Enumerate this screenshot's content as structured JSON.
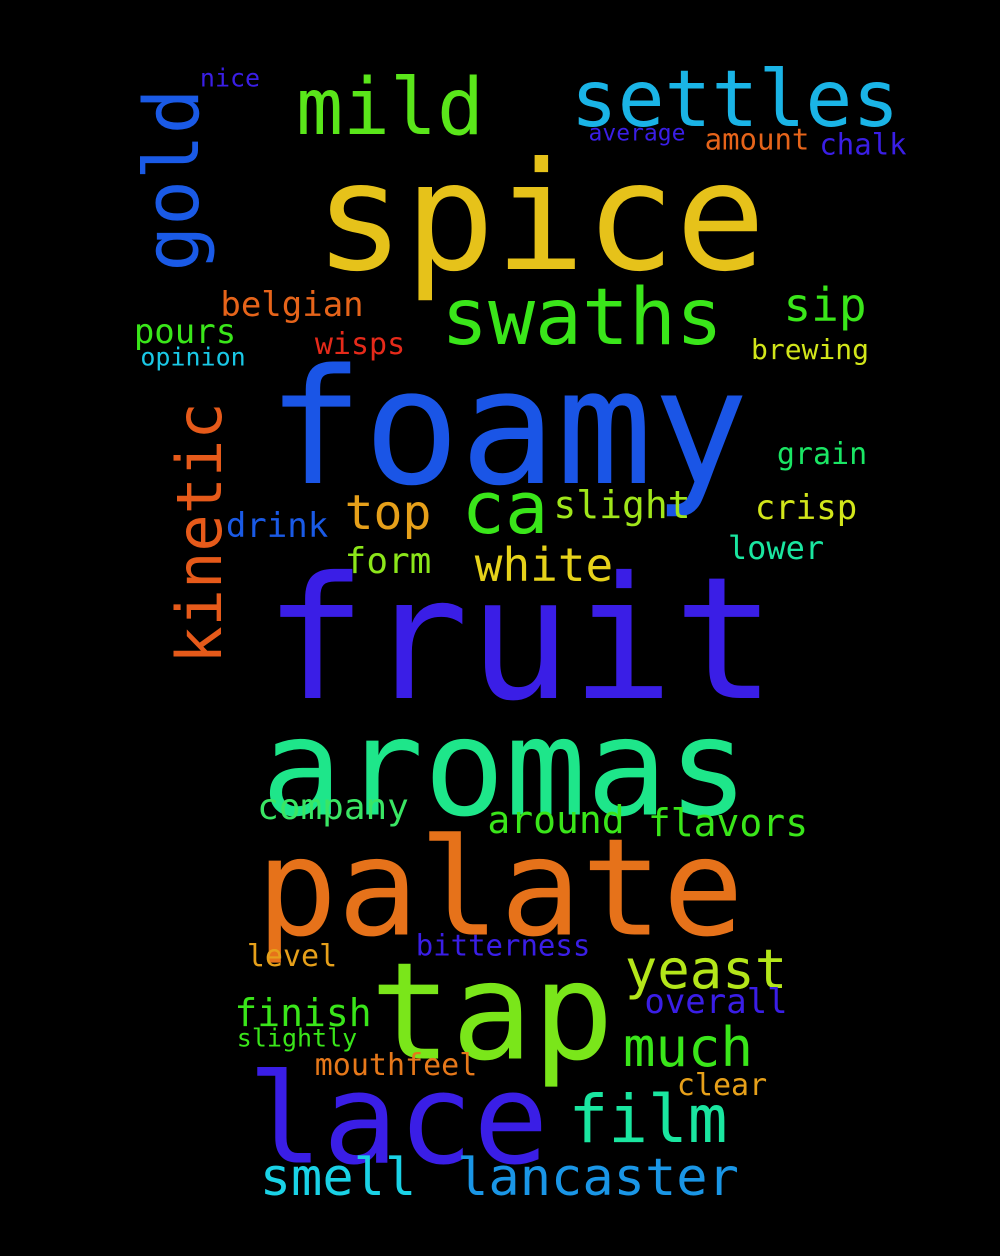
{
  "words": [
    {
      "id": "spice",
      "text": "spice",
      "color": "#e6c21a"
    },
    {
      "id": "foamy",
      "text": "foamy",
      "color": "#1a55e6"
    },
    {
      "id": "fruit",
      "text": "fruit",
      "color": "#3a1ee6"
    },
    {
      "id": "aromas",
      "text": "aromas",
      "color": "#1ee68a"
    },
    {
      "id": "palate",
      "text": "palate",
      "color": "#e6721a"
    },
    {
      "id": "tap",
      "text": "tap",
      "color": "#7ae61a"
    },
    {
      "id": "lace",
      "text": "lace",
      "color": "#3a1ee6"
    },
    {
      "id": "mild",
      "text": "mild",
      "color": "#5ae61a"
    },
    {
      "id": "settles",
      "text": "settles",
      "color": "#1ab4e6"
    },
    {
      "id": "swaths",
      "text": "swaths",
      "color": "#3ae61a"
    },
    {
      "id": "gold",
      "text": "gold",
      "color": "#1a5ae6"
    },
    {
      "id": "kinetic",
      "text": "kinetic",
      "color": "#e65a1a"
    },
    {
      "id": "ca",
      "text": "ca",
      "color": "#3ae61a"
    },
    {
      "id": "film",
      "text": "film",
      "color": "#1ae6a0"
    },
    {
      "id": "yeast",
      "text": "yeast",
      "color": "#b4e61a"
    },
    {
      "id": "much",
      "text": "much",
      "color": "#3ae61a"
    },
    {
      "id": "smell",
      "text": "smell",
      "color": "#1ad2e6"
    },
    {
      "id": "lancaster",
      "text": "lancaster",
      "color": "#1a96e6"
    },
    {
      "id": "top",
      "text": "top",
      "color": "#e6a01a"
    },
    {
      "id": "white",
      "text": "white",
      "color": "#e6d21a"
    },
    {
      "id": "sip",
      "text": "sip",
      "color": "#3ae61a"
    },
    {
      "id": "belgian",
      "text": "belgian",
      "color": "#e6641a"
    },
    {
      "id": "pours",
      "text": "pours",
      "color": "#3ae61a"
    },
    {
      "id": "wisps",
      "text": "wisps",
      "color": "#e62a1a"
    },
    {
      "id": "opinion",
      "text": "opinion",
      "color": "#1ac8e6"
    },
    {
      "id": "brewing",
      "text": "brewing",
      "color": "#d2e61a"
    },
    {
      "id": "nice",
      "text": "nice",
      "color": "#3a1ee6"
    },
    {
      "id": "average",
      "text": "average",
      "color": "#3a1ee6"
    },
    {
      "id": "amount",
      "text": "amount",
      "color": "#e6641a"
    },
    {
      "id": "chalk",
      "text": "chalk",
      "color": "#3a1ee6"
    },
    {
      "id": "grain",
      "text": "grain",
      "color": "#1ae664"
    },
    {
      "id": "slight",
      "text": "slight",
      "color": "#a0e61a"
    },
    {
      "id": "crisp",
      "text": "crisp",
      "color": "#d2e61a"
    },
    {
      "id": "drink",
      "text": "drink",
      "color": "#1a5ae6"
    },
    {
      "id": "form",
      "text": "form",
      "color": "#8ce61a"
    },
    {
      "id": "lower",
      "text": "lower",
      "color": "#1ae6a0"
    },
    {
      "id": "company",
      "text": "company",
      "color": "#3ae664"
    },
    {
      "id": "around",
      "text": "around",
      "color": "#3ae61a"
    },
    {
      "id": "flavors",
      "text": "flavors",
      "color": "#3ae61a"
    },
    {
      "id": "level",
      "text": "level",
      "color": "#e6a01a"
    },
    {
      "id": "bitterness",
      "text": "bitterness",
      "color": "#3a1ee6"
    },
    {
      "id": "finish",
      "text": "finish",
      "color": "#3ae61a"
    },
    {
      "id": "overall",
      "text": "overall",
      "color": "#3a1ee6"
    },
    {
      "id": "slightly",
      "text": "slightly",
      "color": "#3ae61a"
    },
    {
      "id": "mouthfeel",
      "text": "mouthfeel",
      "color": "#e6781a"
    },
    {
      "id": "clear",
      "text": "clear",
      "color": "#e6a01a"
    }
  ]
}
